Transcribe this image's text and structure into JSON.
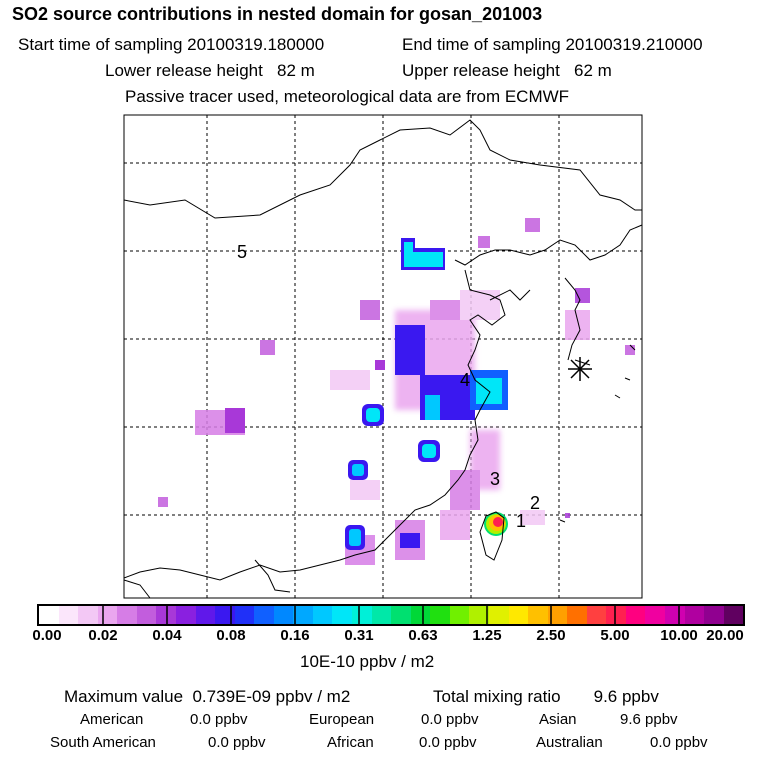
{
  "title": "SO2 source contributions in nested domain for gosan_201003",
  "start_time": "Start time of sampling 20100319.180000",
  "end_time": "End time of sampling 20100319.210000",
  "lower_release": "Lower release height   82 m",
  "upper_release": "Upper release height   62 m",
  "tracer_note": "Passive tracer used, meteorological data are from ECMWF",
  "map": {
    "labels": [
      "1",
      "2",
      "3",
      "4",
      "5"
    ],
    "receptor_marker": "asterisk-icon"
  },
  "colorbar": {
    "ticks": [
      "0.00",
      "0.02",
      "0.04",
      "0.08",
      "0.16",
      "0.31",
      "0.63",
      "1.25",
      "2.50",
      "5.00",
      "10.00",
      "20.00"
    ],
    "unit": "10E-10 ppbv / m2",
    "colors": [
      "#ffffff",
      "#fbe6fb",
      "#f3c8f5",
      "#eaa6ef",
      "#d67de6",
      "#c25ddd",
      "#a838d8",
      "#8a20e0",
      "#6018ea",
      "#3a18f0",
      "#2030f8",
      "#1060ff",
      "#0088ff",
      "#00a8ff",
      "#00c8ff",
      "#00e6f8",
      "#00f0d8",
      "#00e8a8",
      "#00e070",
      "#00d838",
      "#20e010",
      "#70f000",
      "#b0f000",
      "#e0f000",
      "#ffe800",
      "#ffc000",
      "#ffa000",
      "#ff7000",
      "#ff4040",
      "#ff2050",
      "#ff0080",
      "#f000a0",
      "#d000b0",
      "#b000a0",
      "#900090",
      "#600060"
    ]
  },
  "max_value": "Maximum value  0.739E-09 ppbv / m2",
  "total_mixing": "Total mixing ratio       9.6 ppbv",
  "regions": {
    "american_label": "American",
    "american_value": "0.0 ppbv",
    "european_label": "European",
    "european_value": "0.0 ppbv",
    "asian_label": "Asian",
    "asian_value": "9.6 ppbv",
    "south_american_label": "South American",
    "south_american_value": "0.0 ppbv",
    "african_label": "African",
    "african_value": "0.0 ppbv",
    "australian_label": "Australian",
    "australian_value": "0.0 ppbv"
  }
}
